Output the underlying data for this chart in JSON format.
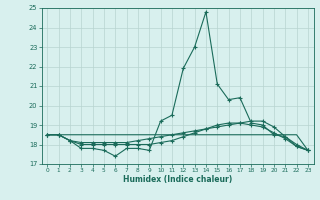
{
  "title": "",
  "xlabel": "Humidex (Indice chaleur)",
  "x": [
    0,
    1,
    2,
    3,
    4,
    5,
    6,
    7,
    8,
    9,
    10,
    11,
    12,
    13,
    14,
    15,
    16,
    17,
    18,
    19,
    20,
    21,
    22,
    23
  ],
  "line1": [
    18.5,
    18.5,
    18.2,
    17.8,
    17.8,
    17.7,
    17.4,
    17.8,
    17.8,
    17.7,
    19.2,
    19.5,
    21.9,
    23.0,
    24.8,
    21.1,
    20.3,
    20.4,
    19.1,
    19.0,
    18.5,
    18.4,
    17.9,
    17.7
  ],
  "line2": [
    18.5,
    18.5,
    18.2,
    18.1,
    18.1,
    18.1,
    18.1,
    18.1,
    18.2,
    18.3,
    18.4,
    18.5,
    18.6,
    18.7,
    18.8,
    18.9,
    19.0,
    19.1,
    19.2,
    19.2,
    18.9,
    18.4,
    18.0,
    17.7
  ],
  "line3": [
    18.5,
    18.5,
    18.5,
    18.5,
    18.5,
    18.5,
    18.5,
    18.5,
    18.5,
    18.5,
    18.5,
    18.5,
    18.5,
    18.5,
    18.5,
    18.5,
    18.5,
    18.5,
    18.5,
    18.5,
    18.5,
    18.5,
    18.5,
    17.7
  ],
  "line4": [
    18.5,
    18.5,
    18.2,
    18.0,
    18.0,
    18.0,
    18.0,
    18.0,
    18.0,
    18.0,
    18.1,
    18.2,
    18.4,
    18.6,
    18.8,
    19.0,
    19.1,
    19.1,
    19.0,
    18.9,
    18.6,
    18.3,
    17.9,
    17.7
  ],
  "color": "#1a6b5a",
  "bg_color": "#d8f0ee",
  "grid_color": "#b8d4d0",
  "ylim": [
    17,
    25
  ],
  "yticks": [
    17,
    18,
    19,
    20,
    21,
    22,
    23,
    24,
    25
  ],
  "xlim": [
    -0.5,
    23.5
  ],
  "xticks": [
    0,
    1,
    2,
    3,
    4,
    5,
    6,
    7,
    8,
    9,
    10,
    11,
    12,
    13,
    14,
    15,
    16,
    17,
    18,
    19,
    20,
    21,
    22,
    23
  ]
}
